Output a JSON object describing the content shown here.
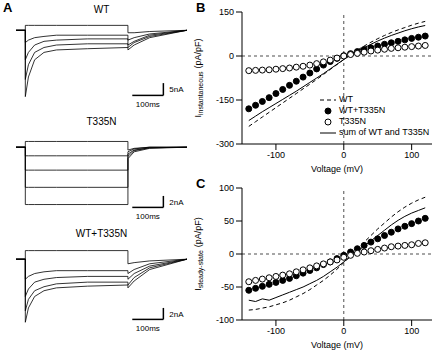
{
  "chart_data": [
    {
      "panel": "A",
      "type": "line",
      "charts": [
        {
          "title": "WT",
          "type": "line",
          "color": "#000000",
          "tick_labels": false,
          "x": [
            -30,
            0,
            0,
            10,
            30,
            60,
            100,
            200,
            330,
            330,
            350,
            400,
            520
          ],
          "xlim": [
            -30,
            520
          ],
          "ylim": [
            -30,
            5
          ],
          "series": [
            {
              "values": [
                0,
                0,
                2,
                2,
                2,
                2,
                2,
                2,
                2,
                -1,
                -1,
                -0.5,
                0
              ]
            },
            {
              "values": [
                0,
                0,
                -5,
                -4,
                -3,
                -2.5,
                -2,
                -2,
                -2,
                -4,
                -3,
                -1.5,
                0
              ]
            },
            {
              "values": [
                0,
                0,
                -12,
                -9,
                -6,
                -4.5,
                -4,
                -3.5,
                -3.5,
                -6,
                -4.5,
                -2,
                0
              ]
            },
            {
              "values": [
                0,
                0,
                -20,
                -14,
                -9,
                -7,
                -6,
                -5.5,
                -5.5,
                -7,
                -5,
                -2.5,
                0
              ]
            },
            {
              "values": [
                0,
                0,
                -27,
                -19,
                -12,
                -9,
                -8,
                -7.5,
                -7,
                -8,
                -6,
                -3,
                0
              ]
            }
          ],
          "scale_bars": {
            "y": {
              "value": 5,
              "label": "5nA"
            },
            "x": {
              "value": 100,
              "label": "100ms"
            }
          }
        },
        {
          "title": "T335N",
          "type": "line",
          "color": "#000000",
          "tick_labels": false,
          "x": [
            -30,
            0,
            0,
            10,
            30,
            60,
            100,
            200,
            330,
            330,
            350,
            400,
            520
          ],
          "xlim": [
            -30,
            520
          ],
          "ylim": [
            -12,
            3
          ],
          "series": [
            {
              "values": [
                0,
                0,
                1,
                1,
                1,
                1,
                1,
                1,
                1,
                -0.5,
                -0.2,
                0,
                0
              ]
            },
            {
              "values": [
                0,
                0,
                -1.5,
                -1.5,
                -1.5,
                -1.5,
                -1.5,
                -1.5,
                -1.5,
                -0.8,
                -0.3,
                0,
                0
              ]
            },
            {
              "values": [
                0,
                0,
                -4,
                -4,
                -4,
                -4,
                -4,
                -4,
                -4,
                -1.2,
                -0.5,
                -0.1,
                0
              ]
            },
            {
              "values": [
                0,
                0,
                -7,
                -7,
                -7,
                -7,
                -7,
                -7,
                -7,
                -1.6,
                -0.6,
                -0.1,
                0
              ]
            },
            {
              "values": [
                0,
                0,
                -10,
                -10,
                -10,
                -10,
                -10,
                -10,
                -10,
                -2,
                -0.8,
                -0.2,
                0
              ]
            }
          ],
          "scale_bars": {
            "y": {
              "value": 2,
              "label": "2nA"
            },
            "x": {
              "value": 100,
              "label": "100ms"
            }
          }
        },
        {
          "title": "WT+T335N",
          "type": "line",
          "color": "#000000",
          "tick_labels": false,
          "x": [
            -30,
            0,
            0,
            10,
            30,
            60,
            100,
            200,
            330,
            330,
            350,
            400,
            520
          ],
          "xlim": [
            -30,
            520
          ],
          "ylim": [
            -12,
            3
          ],
          "series": [
            {
              "values": [
                0,
                0,
                1.5,
                1.5,
                1.5,
                1.5,
                1.5,
                1.5,
                1.5,
                -0.8,
                -0.6,
                -0.3,
                0
              ]
            },
            {
              "values": [
                0,
                0,
                -3.5,
                -3,
                -2.5,
                -2.2,
                -2,
                -2,
                -2,
                -2.5,
                -1.8,
                -0.8,
                0
              ]
            },
            {
              "values": [
                0,
                0,
                -6.5,
                -5.2,
                -4,
                -3.5,
                -3.2,
                -3,
                -3,
                -3.5,
                -2.5,
                -1.2,
                0
              ]
            },
            {
              "values": [
                0,
                0,
                -9,
                -7,
                -5.5,
                -4.8,
                -4.3,
                -4,
                -4,
                -4.5,
                -3.2,
                -1.5,
                0
              ]
            },
            {
              "values": [
                0,
                0,
                -11,
                -8.5,
                -6.5,
                -5.5,
                -5,
                -4.7,
                -4.5,
                -5,
                -3.8,
                -1.8,
                0
              ]
            }
          ],
          "scale_bars": {
            "y": {
              "value": 2,
              "label": "2nA"
            },
            "x": {
              "value": 100,
              "label": "100ms"
            }
          }
        }
      ]
    },
    {
      "panel": "B",
      "type": "line",
      "x_label": "Voltage (mV)",
      "y_label": {
        "text": "I",
        "subscript": "instantaneous",
        "unit": "(pA/pF)"
      },
      "xlim": [
        -150,
        130
      ],
      "ylim": [
        -300,
        150
      ],
      "xticks": [
        -100,
        0,
        100
      ],
      "yticks": [
        -300,
        -150,
        0,
        150
      ],
      "ref_lines": {
        "x": 0,
        "y": 0
      },
      "legend": "lower right",
      "x": [
        -140,
        -130,
        -120,
        -110,
        -100,
        -90,
        -80,
        -70,
        -60,
        -50,
        -40,
        -30,
        -20,
        -10,
        0,
        10,
        20,
        30,
        40,
        50,
        60,
        70,
        80,
        90,
        100,
        110,
        120
      ],
      "series": [
        {
          "name": "WT",
          "color": "#000000",
          "line_style": "dashed",
          "marker": "none",
          "values": [
            -240,
            -224,
            -208,
            -192,
            -176,
            -160,
            -144,
            -128,
            -112,
            -96,
            -80,
            -63,
            -46,
            -29,
            -12,
            5,
            20,
            34,
            47,
            59,
            70,
            80,
            89,
            97,
            105,
            112,
            118
          ]
        },
        {
          "name": "WT+T335N",
          "color": "#000000",
          "line_style": "none",
          "marker": "filled_circle",
          "values": [
            -180,
            -168,
            -155,
            -142,
            -128,
            -114,
            -100,
            -86,
            -72,
            -58,
            -44,
            -31,
            -19,
            -8,
            1,
            8,
            15,
            22,
            28,
            34,
            40,
            45,
            50,
            55,
            60,
            64,
            68
          ]
        },
        {
          "name": "T335N",
          "color": "#000000",
          "line_style": "none",
          "marker": "open_circle",
          "values": [
            -50,
            -49,
            -48,
            -47,
            -45,
            -43,
            -41,
            -38,
            -35,
            -31,
            -26,
            -20,
            -14,
            -7,
            0,
            5,
            9,
            13,
            17,
            20,
            23,
            26,
            28,
            30,
            32,
            34,
            36
          ]
        },
        {
          "name": "sum of WT and T335N",
          "color": "#000000",
          "line_style": "solid",
          "marker": "none",
          "values": [
            -220,
            -205,
            -190,
            -176,
            -162,
            -148,
            -134,
            -120,
            -105,
            -90,
            -75,
            -60,
            -44,
            -28,
            -12,
            3,
            16,
            28,
            40,
            51,
            61,
            70,
            78,
            86,
            93,
            99,
            104
          ]
        }
      ]
    },
    {
      "panel": "C",
      "type": "line",
      "x_label": "Voltage (mV)",
      "y_label": {
        "text": "I",
        "subscript": "steady-state",
        "unit": "(pA/pF)"
      },
      "xlim": [
        -150,
        130
      ],
      "ylim": [
        -100,
        100
      ],
      "xticks": [
        -100,
        0,
        100
      ],
      "yticks": [
        -100,
        -50,
        0,
        50,
        100
      ],
      "ref_lines": {
        "x": 0,
        "y": 0
      },
      "x": [
        -140,
        -130,
        -120,
        -110,
        -100,
        -90,
        -80,
        -70,
        -60,
        -50,
        -40,
        -30,
        -20,
        -10,
        0,
        10,
        20,
        30,
        40,
        50,
        60,
        70,
        80,
        90,
        100,
        110,
        120
      ],
      "series": [
        {
          "color": "#000000",
          "line_style": "dashed",
          "marker": "none",
          "values": [
            -85,
            -84,
            -82,
            -80,
            -77,
            -74,
            -70,
            -65,
            -60,
            -54,
            -47,
            -40,
            -32,
            -23,
            -13,
            -3,
            8,
            18,
            28,
            38,
            47,
            56,
            64,
            71,
            77,
            82,
            86
          ]
        },
        {
          "color": "#000000",
          "line_style": "none",
          "marker": "filled_circle",
          "values": [
            -55,
            -52,
            -49,
            -46,
            -43,
            -40,
            -37,
            -33,
            -29,
            -25,
            -21,
            -16,
            -12,
            -7,
            -2,
            3,
            8,
            13,
            18,
            23,
            28,
            33,
            38,
            42,
            46,
            50,
            54
          ]
        },
        {
          "color": "#000000",
          "line_style": "none",
          "marker": "open_circle",
          "values": [
            -42,
            -40,
            -38,
            -36,
            -34,
            -32,
            -30,
            -27,
            -24,
            -21,
            -18,
            -15,
            -12,
            -9,
            -5,
            -2,
            1,
            3,
            5,
            7,
            9,
            11,
            12,
            13,
            14,
            16,
            17
          ]
        },
        {
          "color": "#000000",
          "line_style": "solid",
          "marker": "none",
          "values": [
            -70,
            -72,
            -68,
            -70,
            -66,
            -62,
            -58,
            -54,
            -50,
            -45,
            -40,
            -34,
            -27,
            -20,
            -12,
            -4,
            4,
            12,
            20,
            28,
            36,
            44,
            51,
            57,
            62,
            66,
            70
          ]
        }
      ]
    }
  ]
}
